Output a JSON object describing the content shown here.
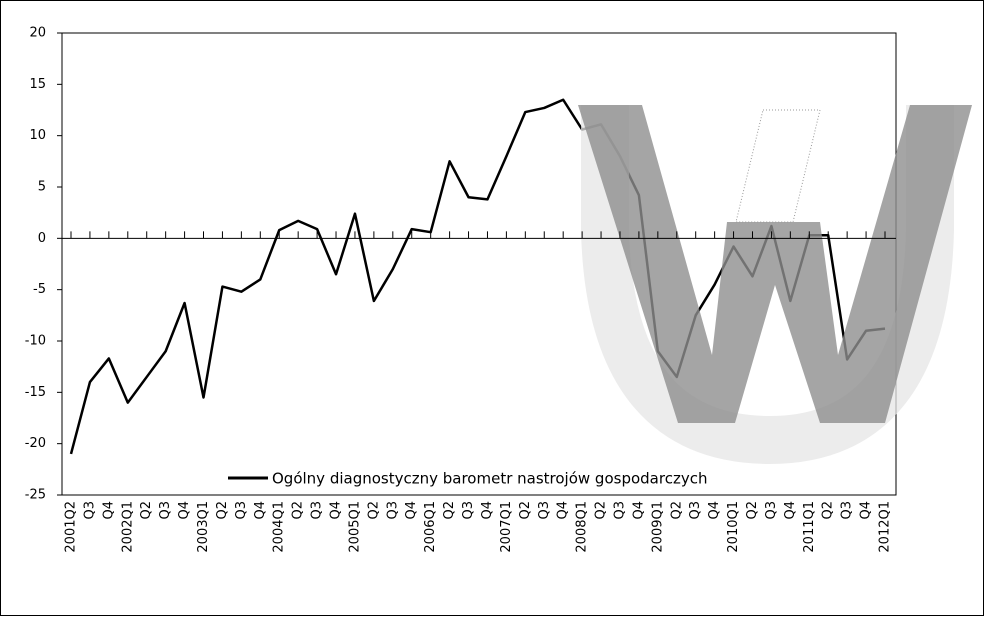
{
  "chart_data": {
    "type": "line",
    "categories": [
      "2001Q2",
      "Q3",
      "Q4",
      "2002Q1",
      "Q2",
      "Q3",
      "Q4",
      "2003Q1",
      "Q2",
      "Q3",
      "Q4",
      "2004Q1",
      "Q2",
      "Q3",
      "Q4",
      "2005Q1",
      "Q2",
      "Q3",
      "Q4",
      "2006Q1",
      "Q2",
      "Q3",
      "Q4",
      "2007Q1",
      "Q2",
      "Q3",
      "Q4",
      "2008Q1",
      "Q2",
      "Q3",
      "Q4",
      "2009Q1",
      "Q2",
      "Q3",
      "Q4",
      "2010Q1",
      "Q2",
      "Q3",
      "Q4",
      "2011Q1",
      "Q2",
      "Q3",
      "Q4",
      "2012Q1"
    ],
    "series": [
      {
        "name": "Ogólny diagnostyczny barometr nastrojów gospodarczych",
        "color": "#000000",
        "values": [
          -21,
          -14,
          -11.7,
          -16,
          -13.5,
          -11,
          -6.3,
          -15.5,
          -4.7,
          -5.2,
          -4,
          0.8,
          1.7,
          0.9,
          -3.5,
          2.4,
          -6.1,
          -3,
          0.9,
          0.6,
          7.5,
          4,
          3.8,
          8,
          12.3,
          12.7,
          13.5,
          10.6,
          11.1,
          8,
          4.2,
          -11,
          -13.5,
          -7.5,
          -4.5,
          -0.8,
          -3.7,
          1.2,
          -6.1,
          0.3,
          0.3,
          -11.8,
          -9,
          -8.8
        ]
      }
    ],
    "ylim": [
      -25,
      20
    ],
    "yticks": [
      -25,
      -20,
      -15,
      -10,
      -5,
      0,
      5,
      10,
      15,
      20
    ]
  }
}
